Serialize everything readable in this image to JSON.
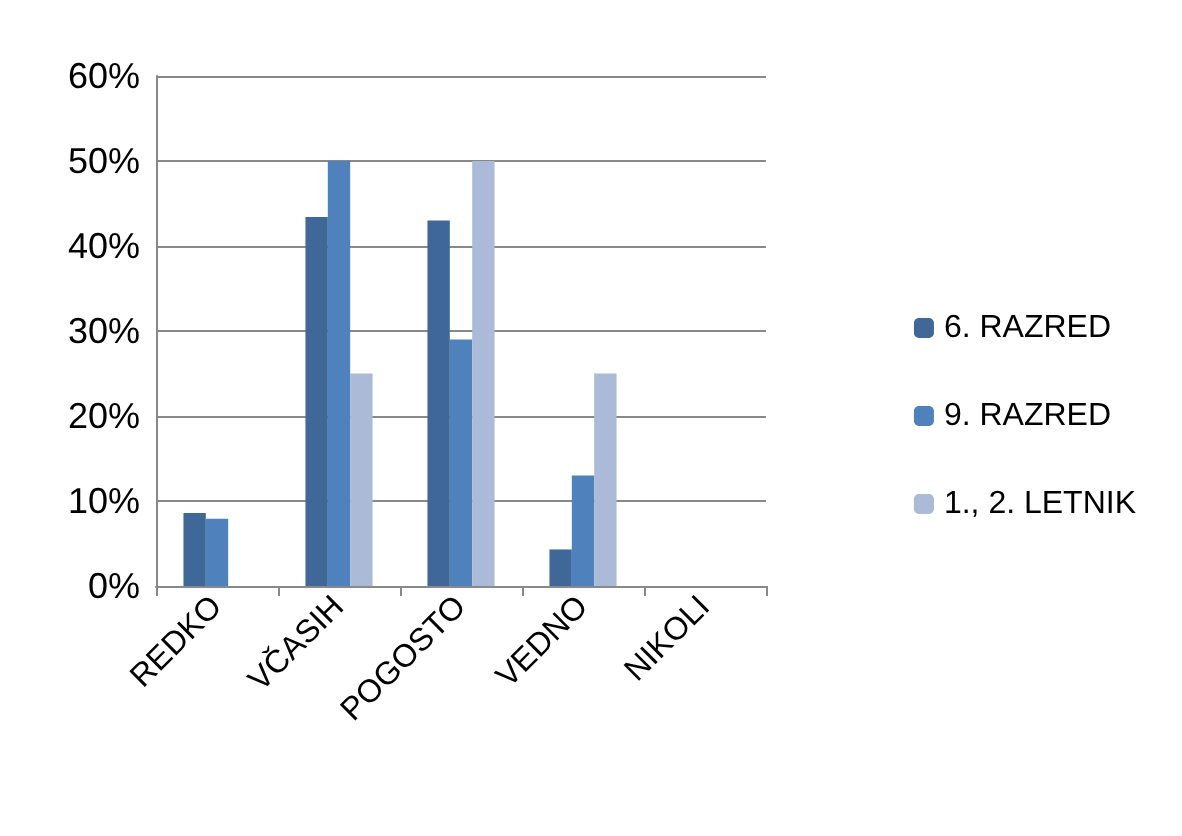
{
  "chart_data": {
    "type": "bar",
    "categories": [
      "REDKO",
      "VČASIH",
      "POGOSTO",
      "VEDNO",
      "NIKOLI"
    ],
    "series": [
      {
        "name": "6. RAZRED",
        "color": "#3f6899",
        "values": [
          8.6,
          43.4,
          43,
          4.3,
          0
        ]
      },
      {
        "name": "9. RAZRED",
        "color": "#4f81bd",
        "values": [
          7.9,
          50,
          29,
          13,
          0
        ]
      },
      {
        "name": "1., 2. LETNIK",
        "color": "#aabad7",
        "values": [
          0,
          25,
          50,
          25,
          0
        ]
      }
    ],
    "ylim": [
      0,
      60
    ],
    "yticks": [
      {
        "value": 0,
        "label": "0%"
      },
      {
        "value": 10,
        "label": "10%"
      },
      {
        "value": 20,
        "label": "20%"
      },
      {
        "value": 30,
        "label": "30%"
      },
      {
        "value": 40,
        "label": "40%"
      },
      {
        "value": 50,
        "label": "50%"
      },
      {
        "value": 60,
        "label": "60%"
      }
    ],
    "grid": "y",
    "legend": "right"
  }
}
